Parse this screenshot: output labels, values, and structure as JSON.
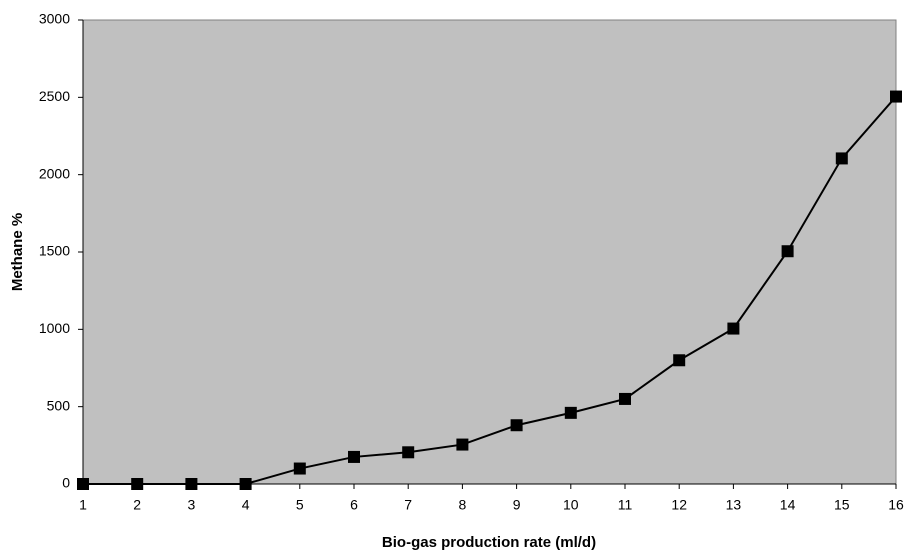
{
  "chart_data": {
    "type": "line",
    "xlabel": "Bio-gas production rate (ml/d)",
    "ylabel": "Methane %",
    "x": [
      1,
      2,
      3,
      4,
      5,
      6,
      7,
      8,
      9,
      10,
      11,
      12,
      13,
      14,
      15,
      16
    ],
    "values": [
      0,
      0,
      0,
      0,
      100,
      175,
      205,
      255,
      380,
      460,
      550,
      800,
      1005,
      1505,
      2105,
      2505
    ],
    "color": "#000000",
    "plot_background": "#c0c0c0",
    "xlim": [
      1,
      16
    ],
    "xticks": [
      1,
      2,
      3,
      4,
      5,
      6,
      7,
      8,
      9,
      10,
      11,
      12,
      13,
      14,
      15,
      16
    ],
    "ylim": [
      0,
      3000
    ],
    "yticks": [
      0,
      500,
      1000,
      1500,
      2000,
      2500,
      3000
    ],
    "grid": false
  }
}
